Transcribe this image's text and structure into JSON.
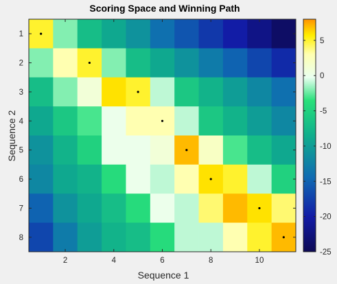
{
  "chart_data": {
    "type": "heatmap",
    "title": "Scoring Space and Winning Path",
    "xlabel": "Sequence 1",
    "ylabel": "Sequence 2",
    "x_ticks": [
      "2",
      "4",
      "6",
      "8",
      "10"
    ],
    "y_ticks": [
      "1",
      "2",
      "3",
      "4",
      "5",
      "6",
      "7",
      "8"
    ],
    "colorbar_ticks": [
      "5",
      "0",
      "-5",
      "-10",
      "-15",
      "-20",
      "-25"
    ],
    "clim": [
      -25,
      8
    ],
    "colormap": "parula-like",
    "columns": 11,
    "rows": 8,
    "values": [
      [
        5,
        -2,
        -7,
        -9,
        -11,
        -14,
        -16,
        -18,
        -20,
        -22,
        -24
      ],
      [
        -2,
        3,
        5,
        -2,
        -7,
        -9,
        -11,
        -13,
        -15,
        -17,
        -19
      ],
      [
        -7,
        -2,
        1,
        6,
        5,
        -1,
        -6,
        -8,
        -10,
        -12,
        -14
      ],
      [
        -9,
        -6,
        -3,
        0,
        3,
        3,
        -1,
        -6,
        -8,
        -10,
        -12
      ],
      [
        -11,
        -8,
        -5,
        0,
        0,
        1,
        7,
        2,
        -3,
        -7,
        -9
      ],
      [
        -12,
        -9,
        -8,
        -4,
        0,
        -1,
        3,
        6,
        5,
        -1,
        -5
      ],
      [
        -15,
        -11,
        -9,
        -7,
        -4,
        0,
        -1,
        4,
        7,
        6,
        4
      ],
      [
        -17,
        -13,
        -10,
        -8,
        -7,
        -4,
        -1,
        -1,
        3,
        5,
        7
      ]
    ],
    "path": [
      {
        "x": 1,
        "y": 1
      },
      {
        "x": 3,
        "y": 2
      },
      {
        "x": 5,
        "y": 3
      },
      {
        "x": 6,
        "y": 4
      },
      {
        "x": 7,
        "y": 5
      },
      {
        "x": 8,
        "y": 6
      },
      {
        "x": 10,
        "y": 7
      },
      {
        "x": 11,
        "y": 8
      }
    ],
    "background": "#f0f0f0",
    "axis_color": "#262626"
  }
}
